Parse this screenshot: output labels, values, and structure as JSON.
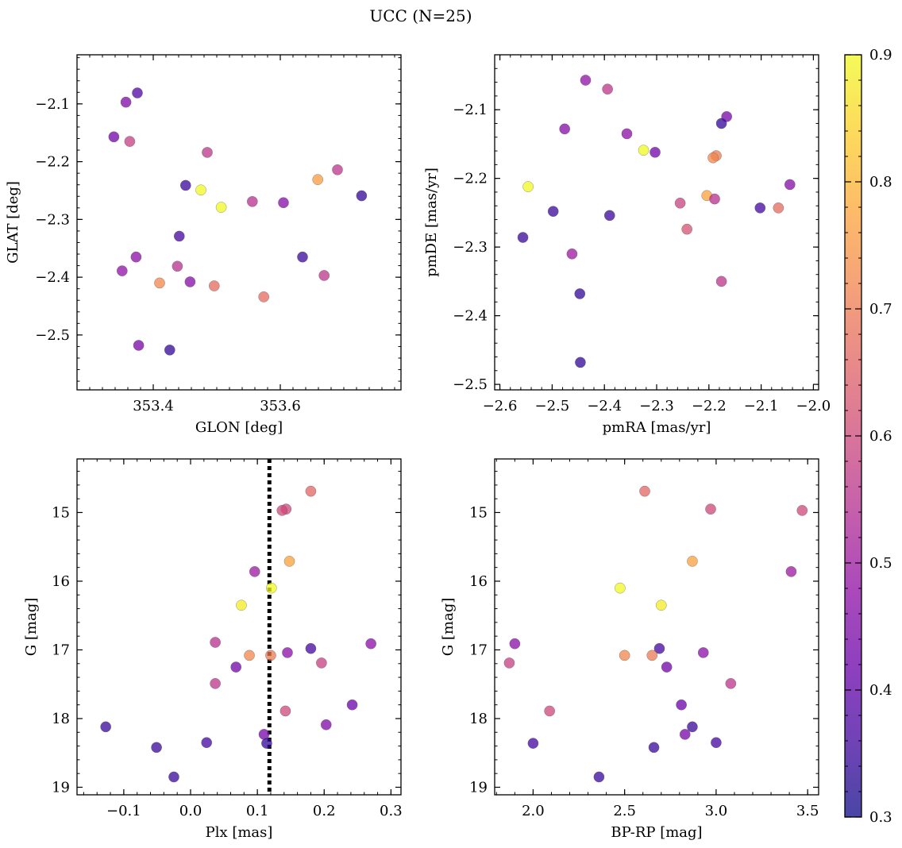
{
  "figure": {
    "title": "UCC (N=25)"
  },
  "colorbar": {
    "label": "",
    "range": [
      0.3,
      0.9
    ],
    "ticks": [
      0.3,
      0.4,
      0.5,
      0.6,
      0.7,
      0.8,
      0.9
    ],
    "tick_labels": [
      "0.3",
      "0.4",
      "0.5",
      "0.6",
      "0.7",
      "0.8",
      "0.9"
    ],
    "colormap": "plasma",
    "colormap_stops": [
      "#0d0887",
      "#41049d",
      "#6a00a8",
      "#8f0da4",
      "#b12a90",
      "#cc4778",
      "#e16462",
      "#f2844b",
      "#fca636",
      "#fcce25",
      "#f0f921"
    ],
    "alpha": 0.75
  },
  "chart_data": [
    {
      "id": "glon-glat",
      "type": "scatter",
      "title": "",
      "xlabel": "GLON [deg]",
      "ylabel": "GLAT [deg]",
      "xlim": [
        353.28,
        353.79
      ],
      "ylim": [
        -2.595,
        -2.015
      ],
      "x_inverted": false,
      "y_inverted": false,
      "xticks": [
        353.4,
        353.6
      ],
      "xtick_labels": [
        "353.4",
        "353.6"
      ],
      "xtick_minor_step": 0.02,
      "yticks": [
        -2.5,
        -2.4,
        -2.3,
        -2.2,
        -2.1
      ],
      "ytick_labels": [
        "−2.5",
        "−2.4",
        "−2.3",
        "−2.2",
        "−2.1"
      ],
      "ytick_minor_step": 0.02,
      "points": [
        {
          "x": 353.375,
          "y": -2.081,
          "c": 0.38
        },
        {
          "x": 353.357,
          "y": -2.097,
          "c": 0.45
        },
        {
          "x": 353.338,
          "y": -2.157,
          "c": 0.43
        },
        {
          "x": 353.363,
          "y": -2.165,
          "c": 0.58
        },
        {
          "x": 353.485,
          "y": -2.184,
          "c": 0.56
        },
        {
          "x": 353.69,
          "y": -2.214,
          "c": 0.56
        },
        {
          "x": 353.659,
          "y": -2.231,
          "c": 0.76
        },
        {
          "x": 353.451,
          "y": -2.241,
          "c": 0.35
        },
        {
          "x": 353.475,
          "y": -2.249,
          "c": 0.9
        },
        {
          "x": 353.507,
          "y": -2.279,
          "c": 0.9
        },
        {
          "x": 353.556,
          "y": -2.269,
          "c": 0.55
        },
        {
          "x": 353.605,
          "y": -2.271,
          "c": 0.46
        },
        {
          "x": 353.728,
          "y": -2.259,
          "c": 0.34
        },
        {
          "x": 353.441,
          "y": -2.329,
          "c": 0.36
        },
        {
          "x": 353.373,
          "y": -2.365,
          "c": 0.47
        },
        {
          "x": 353.635,
          "y": -2.365,
          "c": 0.35
        },
        {
          "x": 353.351,
          "y": -2.389,
          "c": 0.48
        },
        {
          "x": 353.438,
          "y": -2.381,
          "c": 0.55
        },
        {
          "x": 353.669,
          "y": -2.397,
          "c": 0.56
        },
        {
          "x": 353.41,
          "y": -2.41,
          "c": 0.72
        },
        {
          "x": 353.458,
          "y": -2.408,
          "c": 0.46
        },
        {
          "x": 353.496,
          "y": -2.415,
          "c": 0.67
        },
        {
          "x": 353.574,
          "y": -2.434,
          "c": 0.67
        },
        {
          "x": 353.377,
          "y": -2.518,
          "c": 0.44
        },
        {
          "x": 353.426,
          "y": -2.526,
          "c": 0.34
        }
      ]
    },
    {
      "id": "pmra-pmde",
      "type": "scatter",
      "title": "",
      "xlabel": "pmRA [mas/yr]",
      "ylabel": "pmDE [mas/yr]",
      "xlim": [
        -2.61,
        -1.99
      ],
      "ylim": [
        -2.508,
        -2.02
      ],
      "x_inverted": false,
      "y_inverted": false,
      "xticks": [
        -2.6,
        -2.5,
        -2.4,
        -2.3,
        -2.2,
        -2.1,
        -2.0
      ],
      "xtick_labels": [
        "−2.6",
        "−2.5",
        "−2.4",
        "−2.3",
        "−2.2",
        "−2.1",
        "−2.0"
      ],
      "xtick_minor_step": 0.02,
      "yticks": [
        -2.5,
        -2.4,
        -2.3,
        -2.2,
        -2.1
      ],
      "ytick_labels": [
        "−2.5",
        "−2.4",
        "−2.3",
        "−2.2",
        "−2.1"
      ],
      "ytick_minor_step": 0.02,
      "points": [
        {
          "x": -2.436,
          "y": -2.057,
          "c": 0.48
        },
        {
          "x": -2.394,
          "y": -2.07,
          "c": 0.56
        },
        {
          "x": -2.166,
          "y": -2.11,
          "c": 0.44
        },
        {
          "x": -2.176,
          "y": -2.12,
          "c": 0.34
        },
        {
          "x": -2.476,
          "y": -2.128,
          "c": 0.46
        },
        {
          "x": -2.357,
          "y": -2.135,
          "c": 0.47
        },
        {
          "x": -2.325,
          "y": -2.159,
          "c": 0.9
        },
        {
          "x": -2.303,
          "y": -2.162,
          "c": 0.43
        },
        {
          "x": -2.186,
          "y": -2.167,
          "c": 0.7
        },
        {
          "x": -2.192,
          "y": -2.17,
          "c": 0.72
        },
        {
          "x": -2.045,
          "y": -2.209,
          "c": 0.46
        },
        {
          "x": -2.546,
          "y": -2.212,
          "c": 0.9
        },
        {
          "x": -2.204,
          "y": -2.225,
          "c": 0.77
        },
        {
          "x": -2.189,
          "y": -2.23,
          "c": 0.55
        },
        {
          "x": -2.255,
          "y": -2.236,
          "c": 0.59
        },
        {
          "x": -2.102,
          "y": -2.243,
          "c": 0.36
        },
        {
          "x": -2.067,
          "y": -2.243,
          "c": 0.67
        },
        {
          "x": -2.498,
          "y": -2.248,
          "c": 0.35
        },
        {
          "x": -2.39,
          "y": -2.254,
          "c": 0.35
        },
        {
          "x": -2.242,
          "y": -2.274,
          "c": 0.62
        },
        {
          "x": -2.556,
          "y": -2.286,
          "c": 0.35
        },
        {
          "x": -2.462,
          "y": -2.31,
          "c": 0.5
        },
        {
          "x": -2.176,
          "y": -2.35,
          "c": 0.56
        },
        {
          "x": -2.447,
          "y": -2.368,
          "c": 0.34
        },
        {
          "x": -2.446,
          "y": -2.468,
          "c": 0.34
        }
      ]
    },
    {
      "id": "plx-g",
      "type": "scatter",
      "title": "",
      "xlabel": "Plx [mas]",
      "ylabel": "G [mag]",
      "xlim": [
        -0.17,
        0.315
      ],
      "ylim": [
        14.22,
        19.11
      ],
      "x_inverted": false,
      "y_inverted": true,
      "xticks": [
        -0.1,
        0.0,
        0.1,
        0.2,
        0.3
      ],
      "xtick_labels": [
        "−0.1",
        "0.0",
        "0.1",
        "0.2",
        "0.3"
      ],
      "xtick_minor_step": 0.02,
      "yticks": [
        15,
        16,
        17,
        18,
        19
      ],
      "ytick_labels": [
        "15",
        "16",
        "17",
        "18",
        "19"
      ],
      "ytick_minor_step": 0.2,
      "vline": {
        "x": 0.118
      },
      "points": [
        {
          "x": 0.18,
          "y": 14.69,
          "c": 0.66
        },
        {
          "x": 0.143,
          "y": 14.95,
          "c": 0.6
        },
        {
          "x": 0.137,
          "y": 14.97,
          "c": 0.6
        },
        {
          "x": 0.148,
          "y": 15.71,
          "c": 0.77
        },
        {
          "x": 0.096,
          "y": 15.86,
          "c": 0.5
        },
        {
          "x": 0.121,
          "y": 16.1,
          "c": 0.9
        },
        {
          "x": 0.076,
          "y": 16.35,
          "c": 0.88
        },
        {
          "x": 0.037,
          "y": 16.89,
          "c": 0.55
        },
        {
          "x": 0.27,
          "y": 16.91,
          "c": 0.47
        },
        {
          "x": 0.18,
          "y": 16.98,
          "c": 0.36
        },
        {
          "x": 0.145,
          "y": 17.04,
          "c": 0.47
        },
        {
          "x": 0.088,
          "y": 17.08,
          "c": 0.72
        },
        {
          "x": 0.12,
          "y": 17.08,
          "c": 0.7
        },
        {
          "x": 0.196,
          "y": 17.19,
          "c": 0.58
        },
        {
          "x": 0.068,
          "y": 17.25,
          "c": 0.43
        },
        {
          "x": 0.037,
          "y": 17.49,
          "c": 0.56
        },
        {
          "x": 0.242,
          "y": 17.8,
          "c": 0.42
        },
        {
          "x": 0.142,
          "y": 17.89,
          "c": 0.6
        },
        {
          "x": 0.203,
          "y": 18.09,
          "c": 0.45
        },
        {
          "x": -0.127,
          "y": 18.12,
          "c": 0.35
        },
        {
          "x": 0.11,
          "y": 18.23,
          "c": 0.44
        },
        {
          "x": 0.024,
          "y": 18.35,
          "c": 0.36
        },
        {
          "x": 0.114,
          "y": 18.36,
          "c": 0.34
        },
        {
          "x": -0.051,
          "y": 18.42,
          "c": 0.35
        },
        {
          "x": -0.025,
          "y": 18.85,
          "c": 0.35
        }
      ]
    },
    {
      "id": "bprp-g",
      "type": "scatter",
      "title": "",
      "xlabel": "BP-RP [mag]",
      "ylabel": "G [mag]",
      "xlim": [
        1.79,
        3.56
      ],
      "ylim": [
        14.22,
        19.11
      ],
      "x_inverted": false,
      "y_inverted": true,
      "xticks": [
        2.0,
        2.5,
        3.0,
        3.5
      ],
      "xtick_labels": [
        "2.0",
        "2.5",
        "3.0",
        "3.5"
      ],
      "xtick_minor_step": 0.1,
      "yticks": [
        15,
        16,
        17,
        18,
        19
      ],
      "ytick_labels": [
        "15",
        "16",
        "17",
        "18",
        "19"
      ],
      "ytick_minor_step": 0.2,
      "points": [
        {
          "x": 2.61,
          "y": 14.69,
          "c": 0.66
        },
        {
          "x": 2.97,
          "y": 14.95,
          "c": 0.6
        },
        {
          "x": 3.47,
          "y": 14.97,
          "c": 0.6
        },
        {
          "x": 2.87,
          "y": 15.71,
          "c": 0.77
        },
        {
          "x": 3.41,
          "y": 15.86,
          "c": 0.5
        },
        {
          "x": 2.475,
          "y": 16.1,
          "c": 0.9
        },
        {
          "x": 2.7,
          "y": 16.35,
          "c": 0.88
        },
        {
          "x": 1.9,
          "y": 16.91,
          "c": 0.47
        },
        {
          "x": 2.69,
          "y": 16.98,
          "c": 0.36
        },
        {
          "x": 2.93,
          "y": 17.04,
          "c": 0.47
        },
        {
          "x": 2.5,
          "y": 17.08,
          "c": 0.72
        },
        {
          "x": 2.65,
          "y": 17.08,
          "c": 0.7
        },
        {
          "x": 1.87,
          "y": 17.19,
          "c": 0.58
        },
        {
          "x": 2.73,
          "y": 17.25,
          "c": 0.43
        },
        {
          "x": 3.08,
          "y": 17.49,
          "c": 0.56
        },
        {
          "x": 2.81,
          "y": 17.8,
          "c": 0.42
        },
        {
          "x": 2.09,
          "y": 17.89,
          "c": 0.6
        },
        {
          "x": 2.87,
          "y": 18.12,
          "c": 0.35
        },
        {
          "x": 2.83,
          "y": 18.23,
          "c": 0.44
        },
        {
          "x": 2.0,
          "y": 18.36,
          "c": 0.36
        },
        {
          "x": 3.0,
          "y": 18.35,
          "c": 0.36
        },
        {
          "x": 2.66,
          "y": 18.42,
          "c": 0.35
        },
        {
          "x": 2.36,
          "y": 18.85,
          "c": 0.35
        }
      ]
    }
  ]
}
